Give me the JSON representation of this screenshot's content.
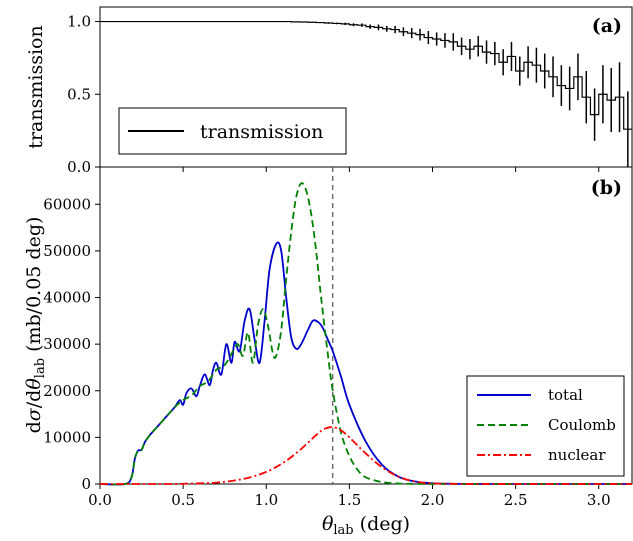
{
  "chart_data": [
    {
      "panel": "(a)",
      "type": "line",
      "ylabel": "transmission",
      "xlim": [
        0.0,
        3.2
      ],
      "ylim": [
        0.0,
        1.1
      ],
      "yticks": [
        0.0,
        0.5,
        1.0
      ],
      "ytick_labels": [
        "0.0",
        "0.5",
        "1.0"
      ],
      "legend": {
        "placement": "lower-left",
        "entries": [
          {
            "name": "transmission",
            "color": "#000000",
            "style": "solid"
          }
        ]
      },
      "series": [
        {
          "name": "transmission",
          "style": "step-with-errorbars",
          "color": "#000000",
          "bin_width": 0.05,
          "x": [
            0.0,
            0.05,
            0.1,
            0.15,
            0.2,
            0.25,
            0.3,
            0.35,
            0.4,
            0.45,
            0.5,
            0.55,
            0.6,
            0.65,
            0.7,
            0.75,
            0.8,
            0.85,
            0.9,
            0.95,
            1.0,
            1.05,
            1.1,
            1.15,
            1.2,
            1.25,
            1.3,
            1.35,
            1.4,
            1.45,
            1.5,
            1.55,
            1.6,
            1.65,
            1.7,
            1.75,
            1.8,
            1.85,
            1.9,
            1.95,
            2.0,
            2.05,
            2.1,
            2.15,
            2.2,
            2.25,
            2.3,
            2.35,
            2.4,
            2.45,
            2.5,
            2.55,
            2.6,
            2.65,
            2.7,
            2.75,
            2.8,
            2.85,
            2.9,
            2.95,
            3.0,
            3.05,
            3.1,
            3.15
          ],
          "values": [
            1.0,
            1.0,
            1.0,
            1.0,
            1.0,
            1.0,
            1.0,
            1.0,
            1.0,
            1.0,
            1.0,
            1.0,
            1.0,
            1.0,
            1.0,
            1.0,
            1.0,
            1.0,
            1.0,
            1.0,
            1.0,
            1.0,
            1.0,
            0.998,
            0.997,
            0.995,
            0.993,
            0.99,
            0.987,
            0.984,
            0.978,
            0.975,
            0.965,
            0.96,
            0.95,
            0.945,
            0.93,
            0.92,
            0.91,
            0.89,
            0.88,
            0.87,
            0.86,
            0.83,
            0.81,
            0.83,
            0.79,
            0.78,
            0.72,
            0.76,
            0.66,
            0.72,
            0.7,
            0.66,
            0.62,
            0.56,
            0.54,
            0.62,
            0.48,
            0.36,
            0.5,
            0.46,
            0.48,
            0.26
          ],
          "errors": [
            0,
            0,
            0,
            0,
            0,
            0,
            0,
            0,
            0,
            0,
            0,
            0,
            0,
            0,
            0,
            0,
            0,
            0,
            0,
            0,
            0,
            0,
            0,
            0,
            0.002,
            0.003,
            0.004,
            0.005,
            0.006,
            0.008,
            0.01,
            0.012,
            0.015,
            0.02,
            0.02,
            0.025,
            0.03,
            0.035,
            0.04,
            0.045,
            0.045,
            0.05,
            0.06,
            0.06,
            0.07,
            0.07,
            0.08,
            0.08,
            0.09,
            0.1,
            0.1,
            0.11,
            0.12,
            0.12,
            0.14,
            0.14,
            0.15,
            0.16,
            0.18,
            0.18,
            0.2,
            0.22,
            0.24,
            0.26
          ]
        }
      ]
    },
    {
      "panel": "(b)",
      "type": "line",
      "xlabel": "θ_lab (deg)",
      "ylabel": "dσ/dθ_lab (mb/0.05 deg)",
      "xlim": [
        0.0,
        3.2
      ],
      "ylim": [
        0,
        68000
      ],
      "xticks": [
        0.0,
        0.5,
        1.0,
        1.5,
        2.0,
        2.5,
        3.0
      ],
      "xtick_labels": [
        "0.0",
        "0.5",
        "1.0",
        "1.5",
        "2.0",
        "2.5",
        "3.0"
      ],
      "yticks": [
        0,
        10000,
        20000,
        30000,
        40000,
        50000,
        60000
      ],
      "ytick_labels": [
        "0",
        "10000",
        "20000",
        "30000",
        "40000",
        "50000",
        "60000"
      ],
      "vline": {
        "x": 1.4,
        "color": "#555555",
        "style": "dashed"
      },
      "legend": {
        "placement": "lower-right"
      },
      "series": [
        {
          "name": "total",
          "color": "#0000cc",
          "style": "solid",
          "x": [
            0.0,
            0.15,
            0.19,
            0.21,
            0.23,
            0.25,
            0.27,
            0.3,
            0.35,
            0.4,
            0.45,
            0.48,
            0.5,
            0.52,
            0.55,
            0.58,
            0.6,
            0.63,
            0.66,
            0.68,
            0.7,
            0.73,
            0.76,
            0.79,
            0.81,
            0.84,
            0.87,
            0.9,
            0.93,
            0.96,
            0.99,
            1.02,
            1.06,
            1.09,
            1.12,
            1.15,
            1.18,
            1.21,
            1.25,
            1.28,
            1.31,
            1.34,
            1.37,
            1.4,
            1.45,
            1.5,
            1.6,
            1.7,
            1.8,
            1.9,
            2.0,
            2.1,
            2.2,
            2.4,
            2.6,
            2.8,
            3.0,
            3.2
          ],
          "values": [
            0,
            0,
            1500,
            5500,
            7200,
            7300,
            9000,
            10500,
            12500,
            14500,
            16500,
            18000,
            17000,
            19500,
            20500,
            18800,
            21000,
            23500,
            21200,
            24500,
            26000,
            23500,
            30000,
            26000,
            30500,
            28500,
            35000,
            37500,
            31000,
            26000,
            35000,
            46000,
            51500,
            50000,
            40000,
            31500,
            29000,
            30000,
            33000,
            35000,
            34800,
            33500,
            31000,
            28500,
            23000,
            17000,
            9000,
            4000,
            1500,
            500,
            150,
            50,
            10,
            0,
            0,
            0,
            0,
            0
          ]
        },
        {
          "name": "Coulomb",
          "color": "#008000",
          "style": "dashed",
          "x": [
            0.0,
            0.15,
            0.19,
            0.21,
            0.23,
            0.25,
            0.27,
            0.3,
            0.35,
            0.4,
            0.45,
            0.5,
            0.55,
            0.6,
            0.65,
            0.7,
            0.75,
            0.8,
            0.83,
            0.86,
            0.89,
            0.92,
            0.95,
            0.98,
            1.01,
            1.04,
            1.06,
            1.09,
            1.12,
            1.15,
            1.18,
            1.21,
            1.24,
            1.27,
            1.3,
            1.33,
            1.37,
            1.4,
            1.45,
            1.5,
            1.55,
            1.6,
            1.7,
            1.8,
            1.9,
            2.0,
            2.2,
            2.4,
            2.8,
            3.2
          ],
          "values": [
            0,
            0,
            1500,
            5500,
            7200,
            7300,
            9000,
            10500,
            12500,
            14500,
            16500,
            18000,
            19000,
            21000,
            22000,
            24500,
            25500,
            28500,
            30000,
            27500,
            32500,
            26000,
            34000,
            37500,
            34000,
            28000,
            27500,
            33000,
            44000,
            54000,
            61500,
            64500,
            63000,
            58000,
            50000,
            40000,
            28000,
            20000,
            11000,
            6000,
            3000,
            1400,
            400,
            100,
            30,
            10,
            0,
            0,
            0,
            0
          ]
        },
        {
          "name": "nuclear",
          "color": "#ff0000",
          "style": "dashdot",
          "x": [
            0.0,
            0.4,
            0.5,
            0.6,
            0.7,
            0.8,
            0.9,
            1.0,
            1.1,
            1.2,
            1.3,
            1.35,
            1.4,
            1.45,
            1.5,
            1.6,
            1.7,
            1.8,
            1.9,
            2.0,
            2.2,
            2.4,
            2.6,
            2.8,
            3.0,
            3.2
          ],
          "values": [
            0,
            0,
            50,
            150,
            300,
            700,
            1400,
            2600,
            4500,
            7200,
            10500,
            11800,
            12200,
            11500,
            10000,
            6500,
            3500,
            1500,
            500,
            150,
            30,
            5,
            0,
            0,
            0,
            0
          ]
        }
      ]
    }
  ]
}
